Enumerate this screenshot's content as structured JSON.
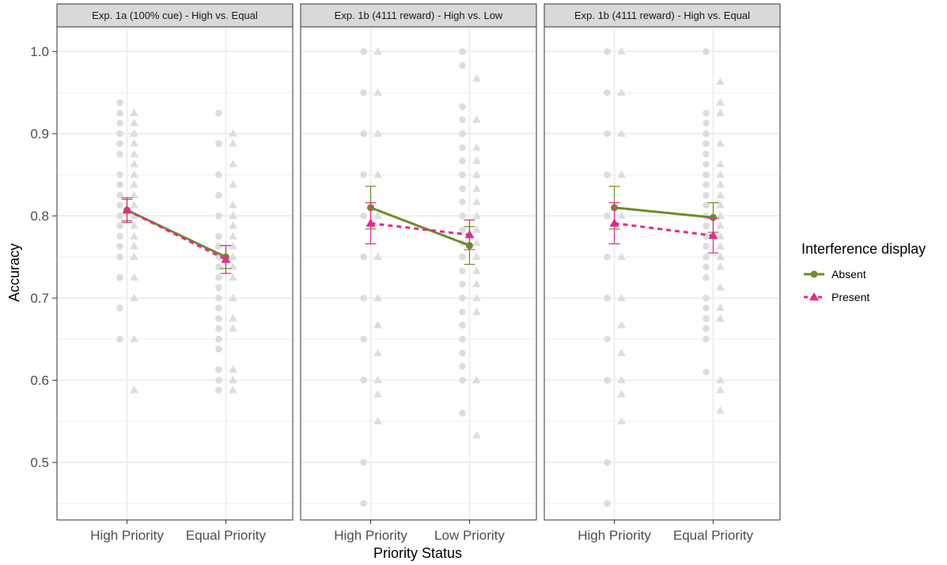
{
  "chart_data": {
    "type": "line",
    "xlabel": "Priority Status",
    "ylabel": "Accuracy",
    "ylim": [
      0.43,
      1.03
    ],
    "yticks": [
      0.5,
      0.6,
      0.7,
      0.8,
      0.9,
      1.0
    ],
    "ytick_labels": [
      "0.5",
      "0.6",
      "0.7",
      "0.8",
      "0.9",
      "1.0"
    ],
    "grid": true,
    "legend": {
      "title": "Interference display",
      "position": "right",
      "entries": [
        {
          "label": "Absent",
          "color": "#6b8e23",
          "marker": "circle",
          "linestyle": "solid"
        },
        {
          "label": "Present",
          "color": "#e7298a",
          "marker": "triangle",
          "linestyle": "dashed"
        }
      ]
    },
    "colors": {
      "absent": "#6b8e23",
      "present": "#e7298a",
      "raw_points": "#dddddd",
      "strip": "#d9d9d9",
      "grid": "#ebebeb"
    },
    "panels": [
      {
        "title": "Exp. 1a (100% cue) - High vs. Equal",
        "categories": [
          "High Priority",
          "Equal Priority"
        ],
        "series": [
          {
            "name": "Absent",
            "values": [
              0.807,
              0.75
            ],
            "err_low": [
              0.794,
              0.736
            ],
            "err_high": [
              0.82,
              0.764
            ]
          },
          {
            "name": "Present",
            "values": [
              0.807,
              0.747
            ],
            "err_low": [
              0.792,
              0.73
            ],
            "err_high": [
              0.822,
              0.764
            ]
          }
        ],
        "raw": {
          "absent": [
            [
              0.938,
              0.925,
              0.913,
              0.9,
              0.888,
              0.875,
              0.85,
              0.838,
              0.825,
              0.813,
              0.8,
              0.788,
              0.775,
              0.763,
              0.75,
              0.725,
              0.688,
              0.65
            ],
            [
              0.925,
              0.888,
              0.85,
              0.825,
              0.8,
              0.775,
              0.763,
              0.75,
              0.738,
              0.725,
              0.713,
              0.7,
              0.688,
              0.675,
              0.663,
              0.65,
              0.638,
              0.613,
              0.6,
              0.588
            ]
          ],
          "present": [
            [
              0.925,
              0.913,
              0.9,
              0.888,
              0.875,
              0.863,
              0.85,
              0.838,
              0.825,
              0.813,
              0.8,
              0.788,
              0.775,
              0.763,
              0.75,
              0.725,
              0.7,
              0.65,
              0.588
            ],
            [
              0.9,
              0.888,
              0.863,
              0.838,
              0.813,
              0.8,
              0.788,
              0.775,
              0.763,
              0.75,
              0.738,
              0.725,
              0.7,
              0.675,
              0.663,
              0.613,
              0.6,
              0.588
            ]
          ]
        }
      },
      {
        "title": "Exp. 1b (4111 reward) - High vs. Low",
        "categories": [
          "High Priority",
          "Low Priority"
        ],
        "series": [
          {
            "name": "Absent",
            "values": [
              0.81,
              0.764
            ],
            "err_low": [
              0.784,
              0.741
            ],
            "err_high": [
              0.836,
              0.787
            ]
          },
          {
            "name": "Present",
            "values": [
              0.791,
              0.777
            ],
            "err_low": [
              0.766,
              0.759
            ],
            "err_high": [
              0.816,
              0.795
            ]
          }
        ],
        "raw": {
          "absent": [
            [
              1.0,
              0.95,
              0.9,
              0.85,
              0.8,
              0.75,
              0.7,
              0.65,
              0.6,
              0.5,
              0.45
            ],
            [
              1.0,
              0.983,
              0.933,
              0.917,
              0.9,
              0.883,
              0.867,
              0.85,
              0.833,
              0.817,
              0.8,
              0.783,
              0.767,
              0.75,
              0.733,
              0.717,
              0.7,
              0.683,
              0.667,
              0.65,
              0.633,
              0.617,
              0.6,
              0.56
            ]
          ],
          "present": [
            [
              1.0,
              0.95,
              0.9,
              0.85,
              0.8,
              0.75,
              0.7,
              0.667,
              0.633,
              0.6,
              0.583,
              0.55
            ],
            [
              0.967,
              0.917,
              0.883,
              0.867,
              0.85,
              0.833,
              0.817,
              0.8,
              0.783,
              0.767,
              0.75,
              0.733,
              0.717,
              0.7,
              0.683,
              0.6,
              0.533
            ]
          ]
        }
      },
      {
        "title": "Exp. 1b (4111 reward) - High vs. Equal",
        "categories": [
          "High Priority",
          "Equal Priority"
        ],
        "series": [
          {
            "name": "Absent",
            "values": [
              0.81,
              0.798
            ],
            "err_low": [
              0.784,
              0.78
            ],
            "err_high": [
              0.836,
              0.816
            ]
          },
          {
            "name": "Present",
            "values": [
              0.791,
              0.776
            ],
            "err_low": [
              0.766,
              0.755
            ],
            "err_high": [
              0.816,
              0.797
            ]
          }
        ],
        "raw": {
          "absent": [
            [
              1.0,
              0.95,
              0.9,
              0.85,
              0.8,
              0.75,
              0.7,
              0.65,
              0.6,
              0.5,
              0.45
            ],
            [
              1.0,
              0.925,
              0.913,
              0.9,
              0.888,
              0.875,
              0.863,
              0.85,
              0.838,
              0.825,
              0.813,
              0.8,
              0.788,
              0.775,
              0.763,
              0.75,
              0.738,
              0.725,
              0.7,
              0.688,
              0.675,
              0.663,
              0.65,
              0.61
            ]
          ],
          "present": [
            [
              1.0,
              0.95,
              0.9,
              0.85,
              0.8,
              0.75,
              0.7,
              0.667,
              0.633,
              0.6,
              0.583,
              0.55
            ],
            [
              0.963,
              0.938,
              0.925,
              0.888,
              0.863,
              0.85,
              0.838,
              0.825,
              0.813,
              0.8,
              0.788,
              0.775,
              0.763,
              0.75,
              0.738,
              0.713,
              0.688,
              0.675,
              0.6,
              0.588,
              0.563
            ]
          ]
        }
      }
    ]
  }
}
